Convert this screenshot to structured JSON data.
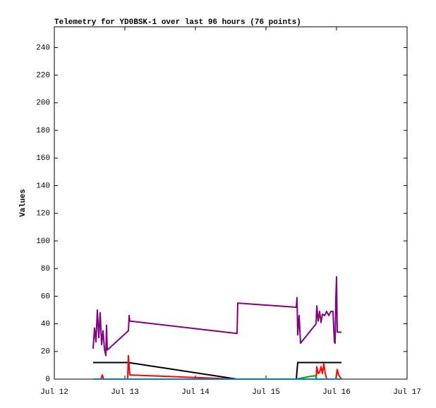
{
  "chart_data": {
    "type": "line",
    "title": "Telemetry for YD0BSK-1 over last 96 hours (76 points)",
    "y_label": "Values",
    "xlim": [
      12,
      17
    ],
    "xticks": [
      {
        "value": 12,
        "label": "Jul 12"
      },
      {
        "value": 13,
        "label": "Jul 13"
      },
      {
        "value": 14,
        "label": "Jul 14"
      },
      {
        "value": 15,
        "label": "Jul 15"
      },
      {
        "value": 16,
        "label": "Jul 16"
      },
      {
        "value": 17,
        "label": "Jul 17"
      }
    ],
    "ylim": [
      0,
      255
    ],
    "yticks": [
      0,
      20,
      40,
      60,
      80,
      100,
      120,
      140,
      160,
      180,
      200,
      220,
      240
    ],
    "series": [
      {
        "color": "#800080",
        "x": [
          12.55,
          12.57,
          12.59,
          12.61,
          12.63,
          12.65,
          12.67,
          12.69,
          12.71,
          12.73,
          12.74,
          12.75,
          13.05,
          13.06,
          13.07,
          14.59,
          14.6,
          15.43,
          15.44,
          15.45,
          15.47,
          15.49,
          15.71,
          15.72,
          15.74,
          15.76,
          15.78,
          15.8,
          15.83,
          15.86,
          15.89,
          15.92,
          15.95,
          15.97,
          15.98,
          15.99,
          16.0,
          16.01,
          16.07
        ],
        "values": [
          22,
          37,
          27,
          50,
          30,
          48,
          25,
          35,
          22,
          17,
          39,
          21,
          35,
          46,
          42,
          33,
          55,
          52,
          59,
          32,
          46,
          26,
          40,
          53,
          42,
          49,
          41,
          47,
          46,
          49,
          46,
          49,
          49,
          27,
          26,
          58,
          74,
          34,
          34
        ]
      },
      {
        "color": "#000000",
        "x": [
          12.55,
          13.05,
          14.59,
          15.43,
          15.45,
          16.07
        ],
        "values": [
          12,
          12,
          0,
          0,
          12,
          12
        ]
      },
      {
        "color": "#ff0000",
        "x": [
          12.55,
          12.66,
          12.68,
          12.7,
          13.04,
          13.05,
          13.07,
          14.59,
          15.43,
          15.71,
          15.72,
          15.74,
          15.76,
          15.78,
          15.8,
          15.82,
          15.84,
          15.86,
          15.99,
          16.01,
          16.03,
          16.07
        ],
        "values": [
          0,
          0,
          3,
          0,
          0,
          17,
          3,
          0,
          0,
          0,
          9,
          4,
          5,
          9,
          4,
          11,
          4,
          0,
          0,
          7,
          3,
          0
        ]
      },
      {
        "color": "#00a000",
        "x": [
          12.55,
          15.43,
          15.63,
          15.7,
          15.72,
          16.07
        ],
        "values": [
          0,
          0,
          2,
          2.5,
          0,
          0
        ]
      },
      {
        "color": "#0080c0",
        "x": [
          12.55,
          16.07
        ],
        "values": [
          0,
          0
        ]
      }
    ]
  }
}
